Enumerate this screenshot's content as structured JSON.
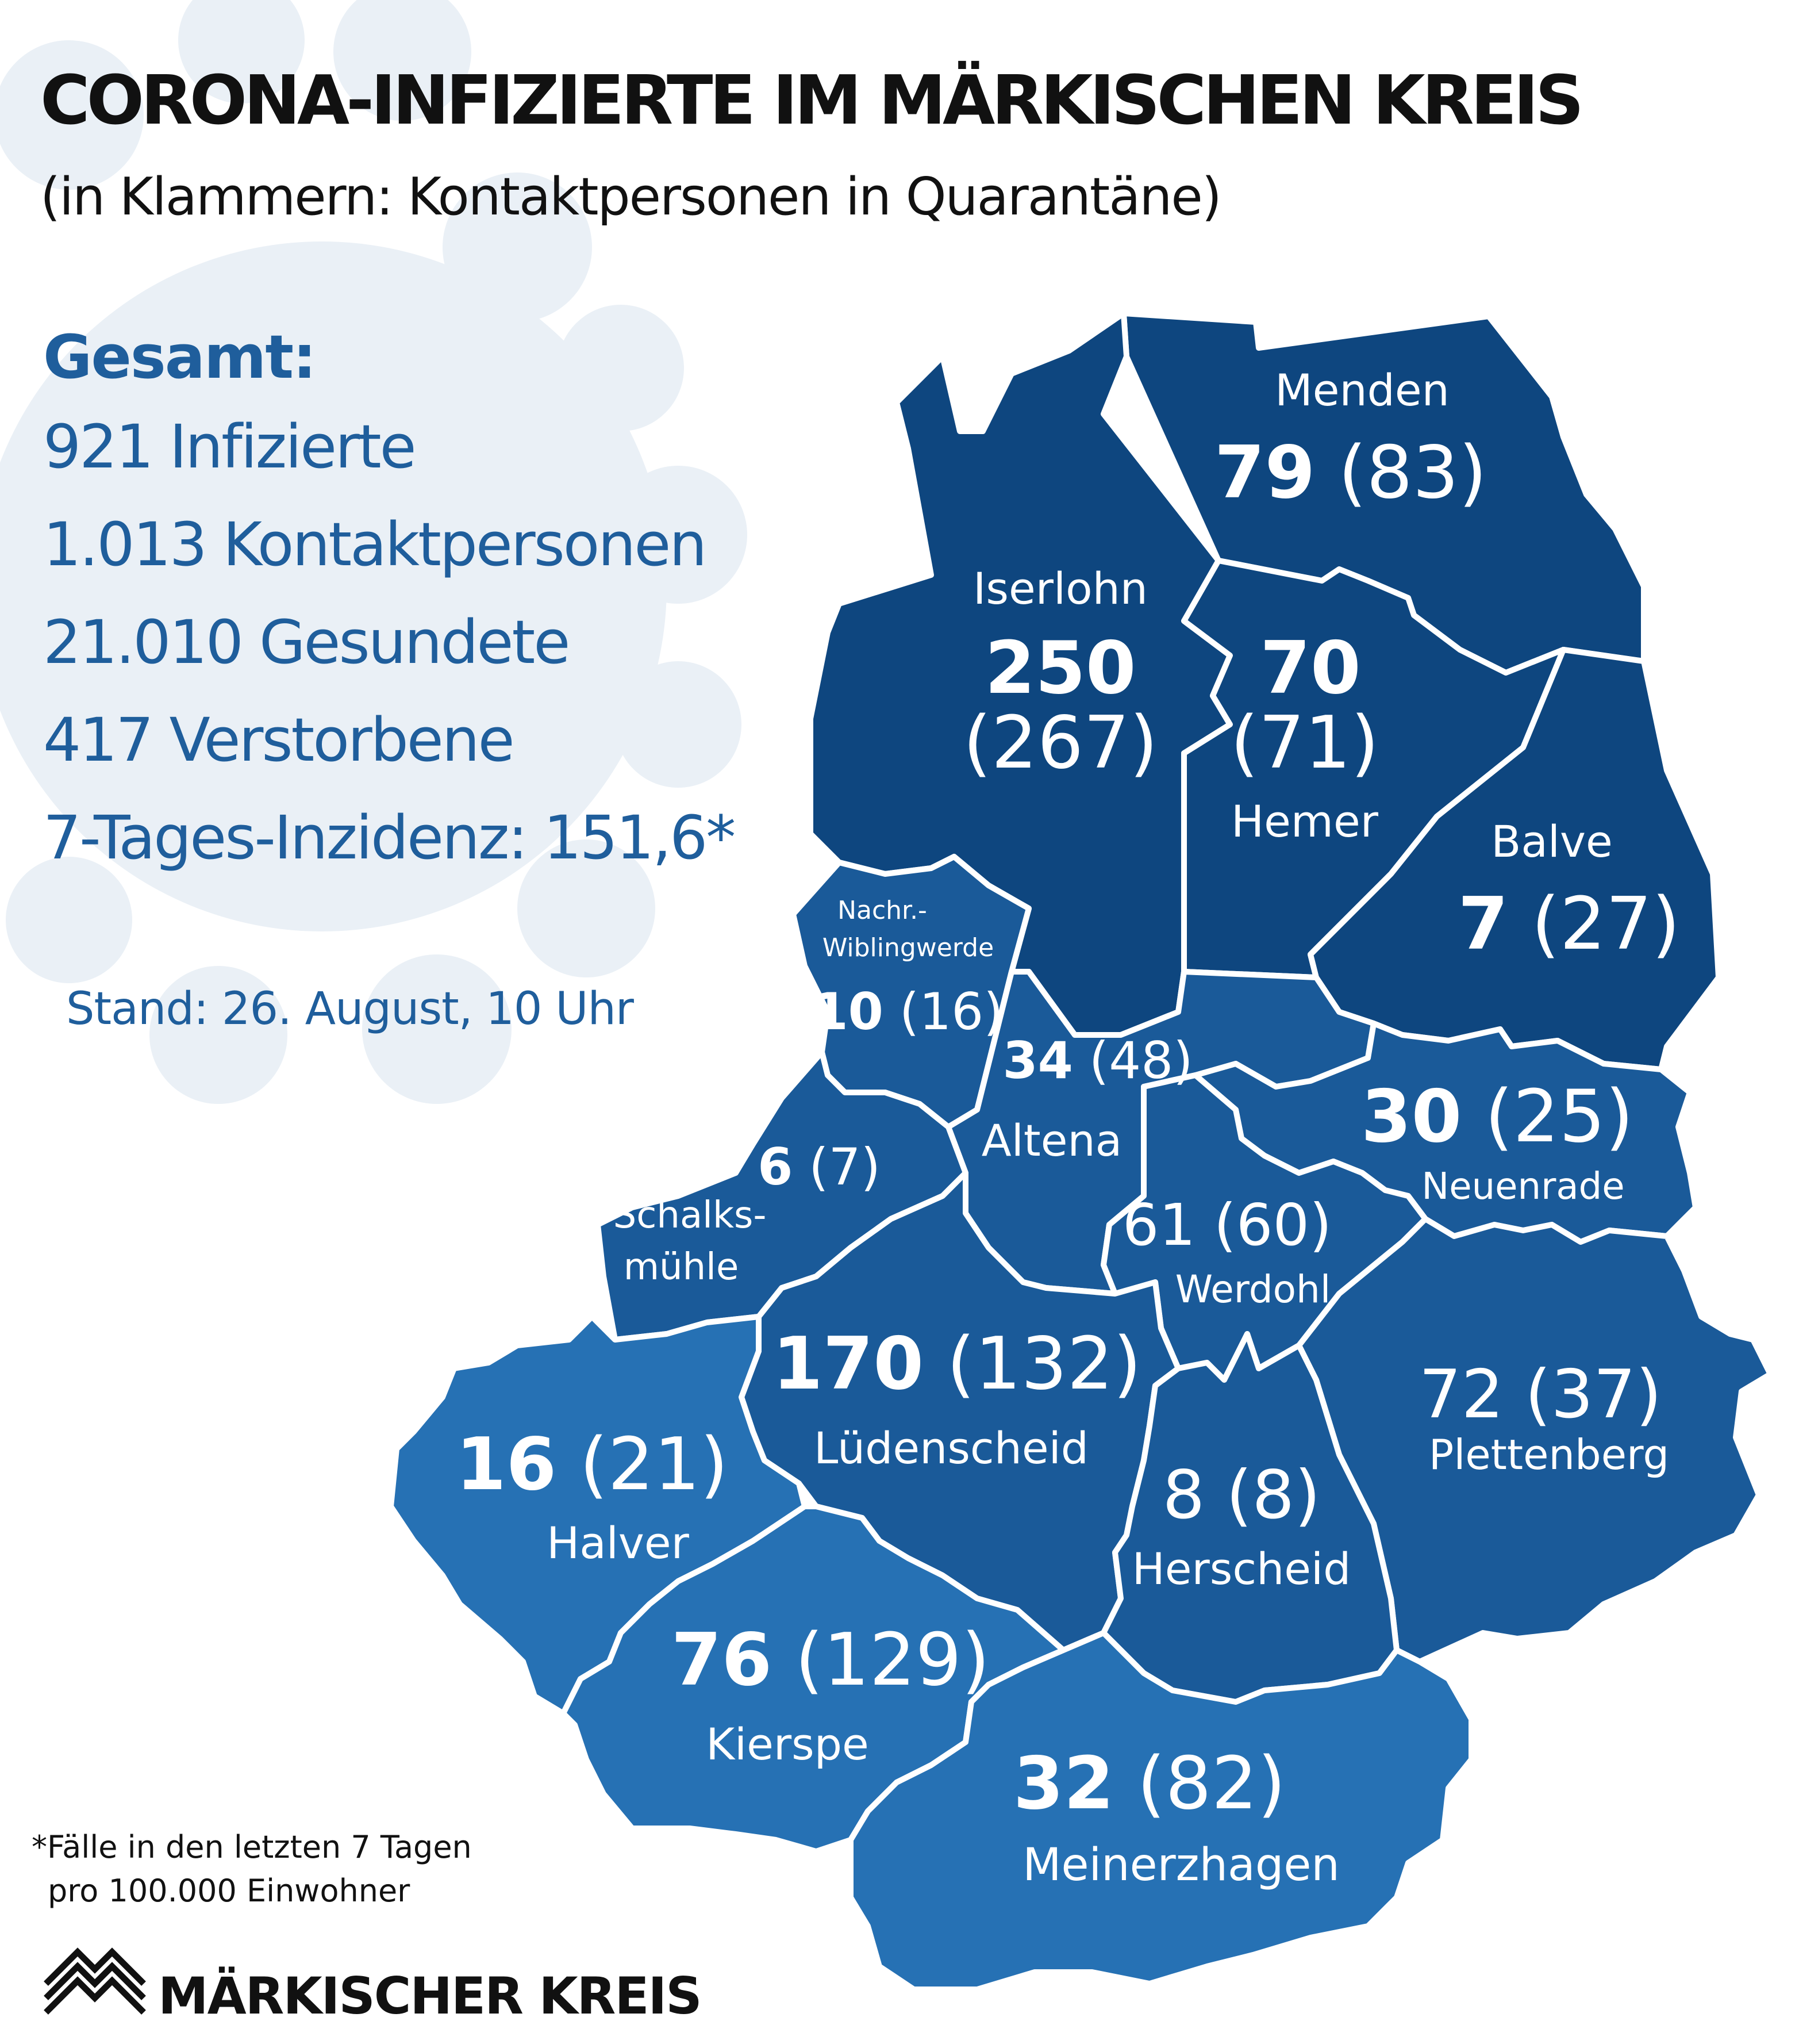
{
  "title": "CORONA-INFIZIERTE IM MÄRKISCHEN KREIS",
  "subtitle": "(in Klammern: Kontaktpersonen in Quarantäne)",
  "summary": {
    "heading": "Gesamt:",
    "infected": "921 Infizierte",
    "contacts": "1.013 Kontaktpersonen",
    "recovered": "21.010 Gesundete",
    "deceased": "417 Verstorbene",
    "incidence": "7-Tages-Inzidenz: 151,6*"
  },
  "stand": "Stand: 26. August, 10 Uhr",
  "footnote": {
    "line1": "*Fälle in den letzten 7 Tagen",
    "line2": "pro 100.000 Einwohner"
  },
  "logo_text": "MÄRKISCHER KREIS",
  "colors": {
    "dark_blue": "#0e467f",
    "mid_blue": "#1a5a99",
    "light_blue": "#2671b4",
    "text_blue": "#1f5e9c",
    "virus_bg": "#eaf0f6"
  },
  "regions": {
    "menden": {
      "name": "Menden",
      "infected": "79",
      "contacts": "(83)"
    },
    "iserlohn": {
      "name": "Iserlohn",
      "infected": "250",
      "contacts": "(267)"
    },
    "hemer": {
      "name": "Hemer",
      "infected": "70",
      "contacts": "(71)"
    },
    "balve": {
      "name": "Balve",
      "infected": "7",
      "contacts": "(27)"
    },
    "nachrodt": {
      "name1": "Nachr.-",
      "name2": "Wiblingwerde",
      "infected": "10",
      "contacts": "(16)"
    },
    "altena": {
      "name": "Altena",
      "infected": "34",
      "contacts": "(48)"
    },
    "neuenrade": {
      "name": "Neuenrade",
      "infected": "30",
      "contacts": "(25)"
    },
    "schalksmuehle": {
      "name1": "Schalks-",
      "name2": "mühle",
      "infected": "6",
      "contacts": "(7)"
    },
    "werdohl": {
      "name": "Werdohl",
      "infected": "61",
      "contacts": "(60)"
    },
    "luedenscheid": {
      "name": "Lüdenscheid",
      "infected": "170",
      "contacts": "(132)"
    },
    "plettenberg": {
      "name": "Plettenberg",
      "infected": "72",
      "contacts": "(37)"
    },
    "halver": {
      "name": "Halver",
      "infected": "16",
      "contacts": "(21)"
    },
    "herscheid": {
      "name": "Herscheid",
      "infected": "8",
      "contacts": "(8)"
    },
    "kierspe": {
      "name": "Kierspe",
      "infected": "76",
      "contacts": "(129)"
    },
    "meinerzhagen": {
      "name": "Meinerzhagen",
      "infected": "32",
      "contacts": "(82)"
    }
  }
}
